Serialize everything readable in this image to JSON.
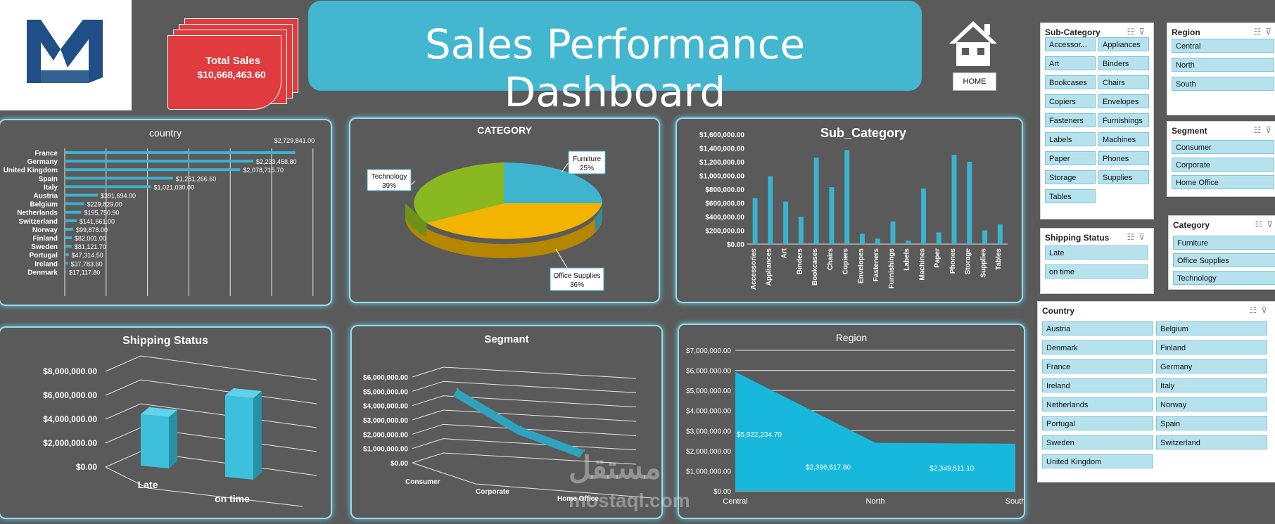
{
  "header": {
    "title": "Sales Performance Dashboard",
    "total_sales_label": "Total Sales",
    "total_sales_value": "$10,668,463.60",
    "home_label": "HOME"
  },
  "watermark": {
    "arabic": "مستقل",
    "latin": "mostaql.com"
  },
  "colors": {
    "accent": "#43b6d0",
    "bar": "#3bb3cf",
    "card_red": "#e03b3e",
    "background": "#5a5a5a",
    "furniture": "#3eb4cf",
    "office_supplies": "#f3b400",
    "technology": "#8ab821"
  },
  "country_chart": {
    "title": "country",
    "type": "bar",
    "categories": [
      "France",
      "Germany",
      "United Kingdom",
      "Spain",
      "Italy",
      "Austria",
      "Belgium",
      "Netherlands",
      "Switzerland",
      "Norway",
      "Finland",
      "Sweden",
      "Portugal",
      "Ireland",
      "Denmark"
    ],
    "values": [
      2729841.0,
      2233458.8,
      2078715.7,
      1281266.6,
      1021030.0,
      391694.0,
      229829.0,
      195750.9,
      141661.0,
      99878.0,
      82001.0,
      81121.7,
      47314.5,
      37783.6,
      17117.8
    ],
    "labels": [
      "$2,729,841.00",
      "$2,233,458.80",
      "$2,078,715.70",
      "$1,281,266.60",
      "$1,021,030.00",
      "$391,694.00",
      "$229,829.00",
      "$195,750.90",
      "$141,661.00",
      "$99,878.00",
      "$82,001.00",
      "$81,121.70",
      "$47,314.50",
      "$37,783.60",
      "$17,117.80"
    ]
  },
  "category_chart": {
    "title": "CATEGORY",
    "type": "pie",
    "slices": [
      {
        "name": "Furniture",
        "percent": 25,
        "label": "25%"
      },
      {
        "name": "Office Supplies",
        "percent": 36,
        "label": "36%"
      },
      {
        "name": "Technology",
        "percent": 39,
        "label": "39%"
      }
    ]
  },
  "subcategory_chart": {
    "title": "Sub_Category",
    "type": "bar",
    "ylim": [
      0,
      1600000
    ],
    "yticks": [
      "$0.00",
      "$200,000.00",
      "$400,000.00",
      "$600,000.00",
      "$800,000.00",
      "$1,000,000.00",
      "$1,200,000.00",
      "$1,400,000.00",
      "$1,600,000.00"
    ],
    "categories": [
      "Accessories",
      "Appliances",
      "Art",
      "Binders",
      "Bookcases",
      "Chairs",
      "Copiers",
      "Envelopes",
      "Fasteners",
      "Furnishings",
      "Labels",
      "Machines",
      "Paper",
      "Phones",
      "Storage",
      "Supplies",
      "Tables"
    ],
    "values": [
      670000,
      990000,
      620000,
      400000,
      1260000,
      830000,
      1370000,
      150000,
      80000,
      330000,
      50000,
      810000,
      170000,
      1300000,
      1200000,
      200000,
      290000
    ]
  },
  "shipping_chart": {
    "title": "Shipping Status",
    "type": "bar",
    "ylim": [
      0,
      8000000
    ],
    "yticks": [
      "$0.00",
      "$2,000,000.00",
      "$4,000,000.00",
      "$6,000,000.00",
      "$8,000,000.00"
    ],
    "categories": [
      "Late",
      "on time"
    ],
    "values": [
      4100000,
      6500000
    ]
  },
  "segment_chart": {
    "title": "Segmant",
    "type": "line",
    "ylim": [
      0,
      6000000
    ],
    "yticks": [
      "$0.00",
      "$1,000,000.00",
      "$2,000,000.00",
      "$3,000,000.00",
      "$4,000,000.00",
      "$5,000,000.00",
      "$6,000,000.00"
    ],
    "categories": [
      "Consumer",
      "Corporate",
      "Home Office"
    ],
    "values": [
      5450000,
      3200000,
      1950000
    ]
  },
  "region_chart": {
    "title": "Region",
    "type": "area",
    "ylim": [
      0,
      7000000
    ],
    "yticks": [
      "$0.00",
      "$1,000,000.00",
      "$2,000,000.00",
      "$3,000,000.00",
      "$4,000,000.00",
      "$5,000,000.00",
      "$6,000,000.00",
      "$7,000,000.00"
    ],
    "categories": [
      "Central",
      "North",
      "South"
    ],
    "values": [
      5922234.7,
      2396617.8,
      2349611.1
    ],
    "labels": [
      "$5,922,234.70",
      "$2,396,617.80",
      "$2,349,611.10"
    ]
  },
  "slicers": {
    "subcategory": {
      "title": "Sub-Category",
      "items": [
        "Accessor...",
        "Appliances",
        "Art",
        "Binders",
        "Bookcases",
        "Chairs",
        "Copiers",
        "Envelopes",
        "Fasteners",
        "Furnishings",
        "Labels",
        "Machines",
        "Paper",
        "Phones",
        "Storage",
        "Supplies",
        "Tables"
      ]
    },
    "region": {
      "title": "Region",
      "items": [
        "Central",
        "North",
        "South"
      ]
    },
    "segment": {
      "title": "Segment",
      "items": [
        "Consumer",
        "Corporate",
        "Home Office"
      ]
    },
    "shipping": {
      "title": "Shipping Status",
      "items": [
        "Late",
        "on time"
      ]
    },
    "category": {
      "title": "Category",
      "items": [
        "Furniture",
        "Office Supplies",
        "Technology"
      ]
    },
    "country": {
      "title": "Country",
      "items": [
        "Austria",
        "Belgium",
        "Denmark",
        "Finland",
        "France",
        "Germany",
        "Ireland",
        "Italy",
        "Netherlands",
        "Norway",
        "Portugal",
        "Spain",
        "Sweden",
        "Switzerland",
        "United Kingdom"
      ]
    }
  }
}
